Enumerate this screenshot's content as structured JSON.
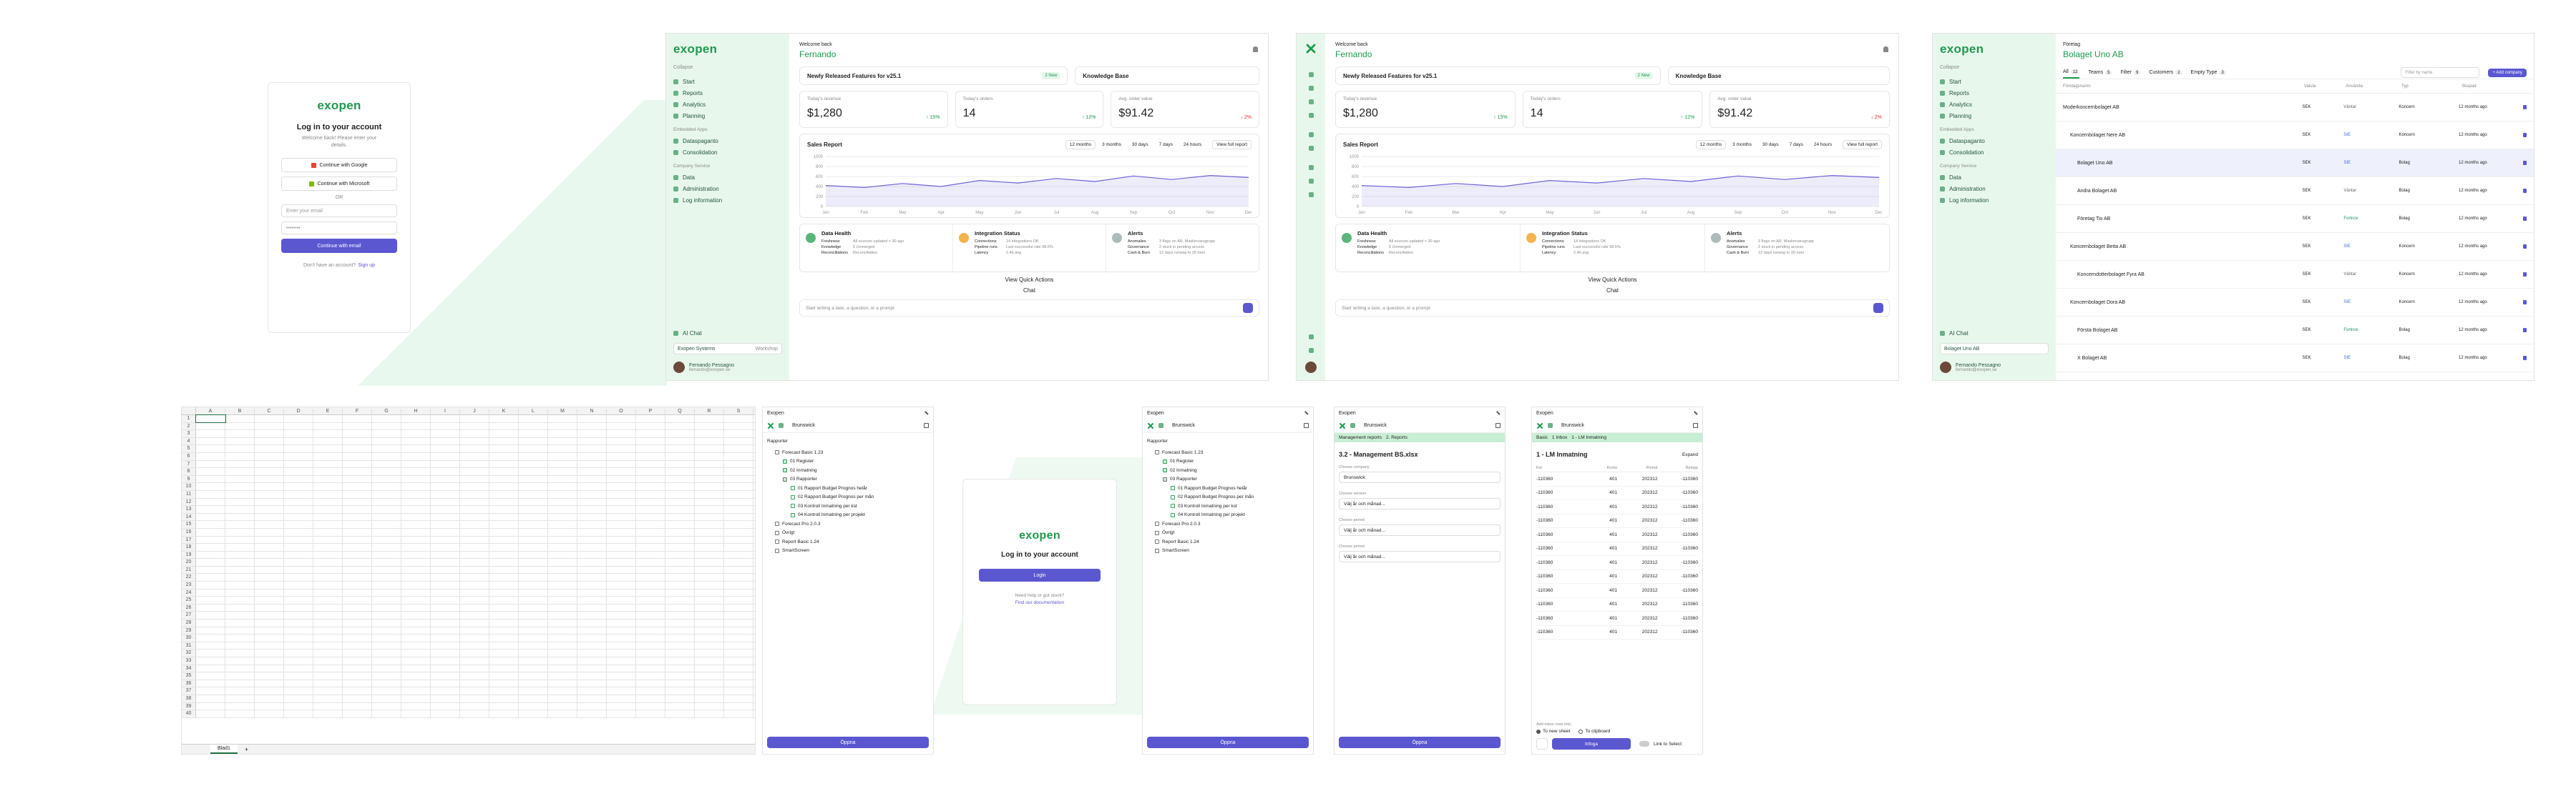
{
  "login": {
    "logo": "exopen",
    "title": "Log in to your account",
    "subtitle": "Welcome back! Please enter your details.",
    "google": "Continue with Google",
    "microsoft": "Continue with Microsoft",
    "divider": "OR",
    "email": "Enter your email",
    "password": "••••••••",
    "submit": "Continue with email",
    "signup_prompt": "Don't have an account?",
    "signup_link": "Sign up"
  },
  "sidebar": {
    "logo": "exopen",
    "collapse": "Collapse",
    "nav": [
      "Start",
      "Reports",
      "Analytics",
      "Planning"
    ],
    "section_apps": "Embedded Apps",
    "apps": [
      "Dataspaganto",
      "Consolidation"
    ],
    "section_company": "Company Service",
    "company": [
      "Data",
      "Administration",
      "Log information"
    ],
    "ai_chat": "AI Chat",
    "workspace": "Exopen Systems",
    "workspace_tag": "Workshop",
    "company_select": "Bolaget Uno AB",
    "user_name": "Fernando Pessagno",
    "user_email": "fernando@exopen.se"
  },
  "dashboard": {
    "welcome": "Welcome back",
    "name": "Fernando",
    "news": "Newly Released Features for v25.1",
    "news_badge": "2 New",
    "knowledge": "Knowledge Base",
    "kpis": [
      {
        "label": "Today's revenue",
        "value": "$1,280",
        "change": "↑ 15%"
      },
      {
        "label": "Today's orders",
        "value": "14",
        "change": "↑ 12%"
      },
      {
        "label": "Avg. order value",
        "value": "$91.42",
        "change": "↓ 2%"
      }
    ],
    "sales": {
      "title": "Sales Report",
      "ranges": [
        "12 months",
        "3 months",
        "30 days",
        "7 days",
        "24 hours"
      ],
      "full_report": "View full report",
      "chart_data": {
        "type": "area",
        "categories": [
          "Jan",
          "Feb",
          "Mar",
          "Apr",
          "May",
          "Jun",
          "Jul",
          "Aug",
          "Sep",
          "Oct",
          "Nov",
          "Dec"
        ],
        "values": [
          420,
          380,
          460,
          400,
          520,
          470,
          560,
          500,
          610,
          540,
          620,
          580
        ],
        "color": "#6c63d9",
        "ylim": [
          0,
          1000
        ],
        "yticks": [
          0,
          200,
          400,
          600,
          800,
          1000
        ],
        "grid": true
      }
    },
    "health": [
      {
        "title": "Data Health",
        "rows": [
          [
            "Freshness",
            "All sources updated < 30 ago"
          ],
          [
            "Knowledge",
            "5 Unmerged"
          ],
          [
            "Reconciliations",
            "Reconciliation"
          ]
        ]
      },
      {
        "title": "Integration Status",
        "rows": [
          [
            "Connections",
            "14 integrations OK"
          ],
          [
            "Pipeline runs",
            "Last successful rate 98.5%"
          ],
          [
            "Latency",
            "2.4h avg"
          ]
        ]
      },
      {
        "title": "Alerts",
        "rows": [
          [
            "Anomalies",
            "3 flags on AR, Maskinvarugrupp"
          ],
          [
            "Governance",
            "2 stuck in pending access"
          ],
          [
            "Cash & Burn",
            "12 days runway in 20 mon"
          ]
        ]
      }
    ],
    "quick_actions": "View Quick Actions",
    "chat": "Chat",
    "prompt": "Start writing a task, a question, or a prompt"
  },
  "companies": {
    "label": "Företag",
    "title": "Bolaget Uno AB",
    "tabs": [
      {
        "name": "All",
        "count": 12
      },
      {
        "name": "Teams",
        "count": 5
      },
      {
        "name": "Filter",
        "count": 9
      },
      {
        "name": "Customers",
        "count": 2
      },
      {
        "name": "Empty Type",
        "count": 3
      }
    ],
    "search": "Filter by name",
    "add": "+ Add company",
    "columns": [
      "Företagsnamn",
      "Valuta",
      "Använda",
      "Typ",
      "Skapad"
    ],
    "rows": [
      [
        "Moderkoncernbolaget AB",
        "SEK",
        "Väntar",
        "Koncern",
        "12 months ago"
      ],
      [
        "Koncernbolaget Nere AB",
        "SEK",
        "SIE",
        "Koncern",
        "12 months ago"
      ],
      [
        "Bolaget Uno AB",
        "SEK",
        "SIE",
        "Bolag",
        "12 months ago"
      ],
      [
        "Andra Bolaget AB",
        "SEK",
        "Väntar",
        "Bolag",
        "12 months ago"
      ],
      [
        "Företag Tio AB",
        "SEK",
        "Fortnox",
        "Bolag",
        "12 months ago"
      ],
      [
        "Koncernbolaget Betta AB",
        "SEK",
        "SIE",
        "Koncern",
        "12 months ago"
      ],
      [
        "Koncerndotterbolaget Fyra AB",
        "SEK",
        "Väntar",
        "Koncern",
        "12 months ago"
      ],
      [
        "Koncernbolaget Dora AB",
        "SEK",
        "SIE",
        "Koncern",
        "12 months ago"
      ],
      [
        "Första Bolaget AB",
        "SEK",
        "Fortnox",
        "Bolag",
        "12 months ago"
      ],
      [
        "X Bolaget AB",
        "SEK",
        "SIE",
        "Bolag",
        "12 months ago"
      ]
    ]
  },
  "spreadsheet": {
    "columns": [
      "A",
      "B",
      "C",
      "D",
      "E",
      "F",
      "G",
      "H",
      "I",
      "J",
      "K",
      "L",
      "M",
      "N",
      "O",
      "P",
      "Q",
      "R",
      "S"
    ],
    "rows": [
      1,
      2,
      3,
      4,
      5,
      6,
      7,
      8,
      9,
      10,
      11,
      12,
      13,
      14,
      15,
      16,
      17,
      18,
      19,
      20,
      21,
      22,
      23,
      24,
      25,
      26,
      27,
      28,
      29,
      30,
      31,
      32,
      33,
      34,
      35,
      36,
      37,
      38,
      39,
      40
    ],
    "sheet": "Blad1",
    "add_sheet": "+"
  },
  "addin": {
    "title": "Exopen",
    "company": "Brunswick",
    "section": "Rapporter",
    "tree": [
      {
        "label": "Forecast Basic 1.23",
        "children": [
          {
            "label": "01 Register"
          },
          {
            "label": "02 Inmatning"
          },
          {
            "label": "03 Rapporter",
            "children": [
              {
                "label": "01 Rapport Budget Prognos helår"
              },
              {
                "label": "02 Rapport Budget Prognos per mån"
              },
              {
                "label": "03 Kontroll Inmatning per kst"
              },
              {
                "label": "04 Kontroll Inmatning per projekt"
              }
            ]
          }
        ]
      },
      {
        "label": "Forecast Pro 2.0.3"
      },
      {
        "label": "Övrigt"
      },
      {
        "label": "Report Basic 1.24"
      },
      {
        "label": "SmartScreen"
      }
    ],
    "open": "Öppna"
  },
  "login2": {
    "logo": "exopen",
    "title": "Log in to your account",
    "button": "Login",
    "help": "Need help or got stuck?",
    "docs": "Find our documentation"
  },
  "report_form": {
    "breadcrumb": [
      "Management reports",
      "2. Reports"
    ],
    "title": "3.2 - Management BS.xlsx",
    "fields": [
      {
        "label": "Choose company",
        "value": "Brunswick"
      },
      {
        "label": "Choose version",
        "value": "Välj år och månad..."
      },
      {
        "label": "Choose period",
        "value": "Välj år och månad..."
      },
      {
        "label": "Choose period",
        "value": "Välj år och månad..."
      }
    ],
    "open": "Öppna"
  },
  "inbox": {
    "breadcrumb": [
      "Basic",
      "1 Inbox",
      "1 - LM Inmatning"
    ],
    "title": "1 - LM Inmatning",
    "expand": "Expand",
    "columns": [
      "Kst",
      "Konto",
      "Period",
      "Belopp"
    ],
    "rows": [
      [
        "-110360",
        "401",
        "202312",
        "-110360"
      ],
      [
        "-110360",
        "401",
        "202312",
        "-110360"
      ],
      [
        "-110360",
        "401",
        "202312",
        "-110360"
      ],
      [
        "-110360",
        "401",
        "202312",
        "-110360"
      ],
      [
        "-110360",
        "401",
        "202312",
        "-110360"
      ],
      [
        "-110360",
        "401",
        "202312",
        "-110360"
      ],
      [
        "-110360",
        "401",
        "202312",
        "-110360"
      ],
      [
        "-110360",
        "401",
        "202312",
        "-110360"
      ],
      [
        "-110360",
        "401",
        "202312",
        "-110360"
      ],
      [
        "-110360",
        "401",
        "202312",
        "-110360"
      ],
      [
        "-110360",
        "401",
        "202312",
        "-110360"
      ],
      [
        "-110360",
        "401",
        "202312",
        "-110360"
      ]
    ],
    "insert_label": "Add inbox rows into:",
    "options": [
      "To new sheet",
      "To clipboard"
    ],
    "insert": "Infoga",
    "link": "Link to Select"
  }
}
